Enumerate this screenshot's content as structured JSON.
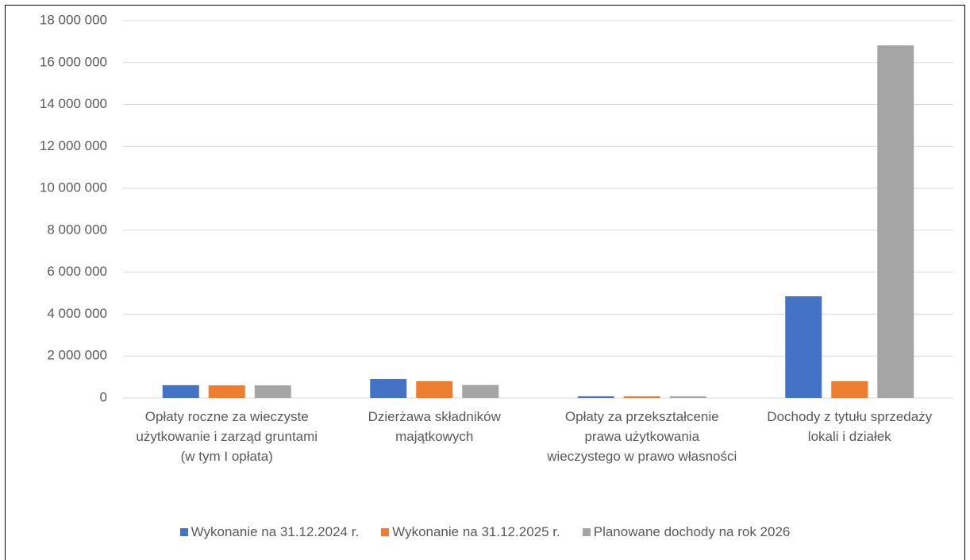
{
  "chart_data": {
    "type": "bar",
    "categories": [
      "Opłaty roczne za wieczyste użytkowanie i zarząd gruntami (w tym I opłata)",
      "Dzierżawa składników majątkowych",
      "Opłaty za przekształcenie prawa użytkowania wieczystego w prawo własności",
      "Dochody z tytułu sprzedaży lokali i działek"
    ],
    "series": [
      {
        "name": "Wykonanie na 31.12.2024 r.",
        "color": "#4472c4",
        "values": [
          610000,
          910000,
          80000,
          4850000
        ]
      },
      {
        "name": "Wykonanie na 31.12.2025 r.",
        "color": "#ed7d31",
        "values": [
          600000,
          800000,
          80000,
          800000
        ]
      },
      {
        "name": "Planowane dochody na rok 2026",
        "color": "#a5a5a5",
        "values": [
          600000,
          620000,
          80000,
          16820000
        ]
      }
    ],
    "ylim": [
      0,
      18000000
    ],
    "yticks": [
      0,
      {
        "value": 2000000,
        "label": "2 000 000"
      },
      {
        "value": 4000000,
        "label": "4 000 000"
      },
      {
        "value": 6000000,
        "label": "6 000 000"
      },
      {
        "value": 8000000,
        "label": "8 000 000"
      },
      {
        "value": 10000000,
        "label": "10 000 000"
      },
      {
        "value": 12000000,
        "label": "12 000 000"
      },
      {
        "value": 14000000,
        "label": "14 000 000"
      },
      {
        "value": 16000000,
        "label": "16 000 000"
      },
      {
        "value": 18000000,
        "label": "18 000 000"
      }
    ],
    "grid": true,
    "legend": "bottom"
  }
}
